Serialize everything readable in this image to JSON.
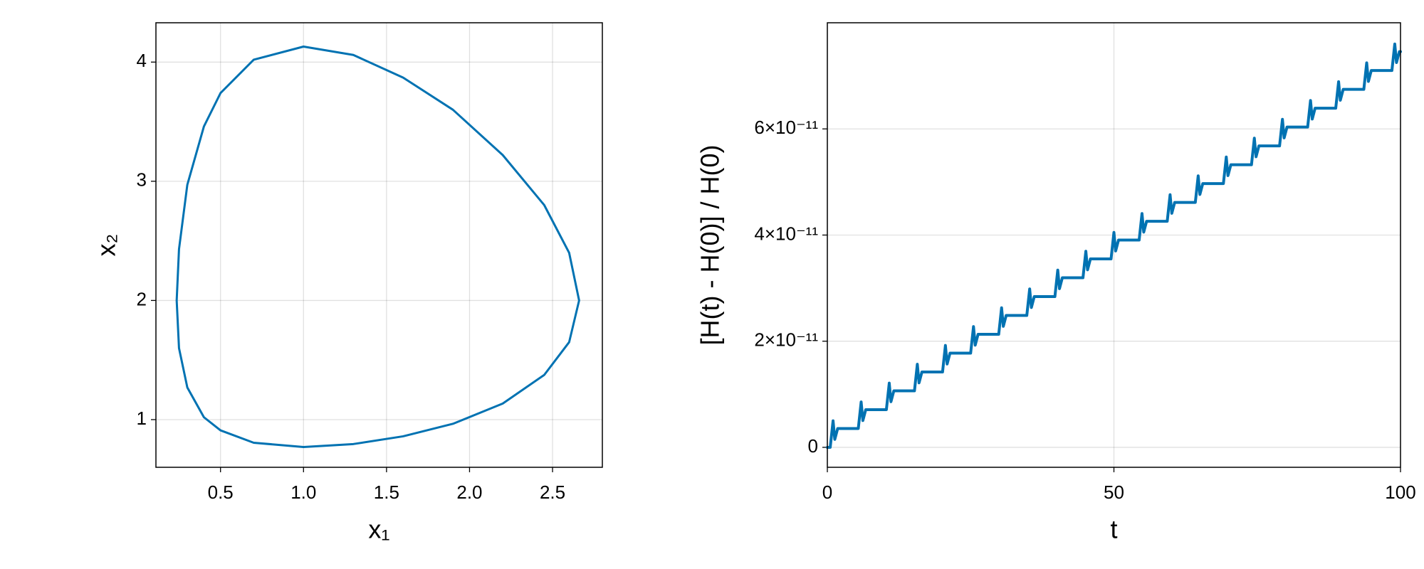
{
  "chart_data": [
    {
      "type": "line",
      "x_label": "x₁",
      "y_label": "x₂",
      "x": [
        1,
        1.3,
        1.6,
        1.9,
        2.2,
        2.45,
        2.6,
        2.66,
        2.6,
        2.45,
        2.2,
        1.9,
        1.6,
        1.3,
        1,
        0.7,
        0.5,
        0.4,
        0.3,
        0.25,
        0.236,
        0.25,
        0.3,
        0.4,
        0.5,
        0.7,
        1
      ],
      "series": [
        {
          "color": "#0072b2",
          "values": [
            0.77,
            0.795,
            0.86,
            0.965,
            1.135,
            1.375,
            1.65,
            2,
            2.4,
            2.8,
            3.22,
            3.6,
            3.87,
            4.06,
            4.13,
            4.02,
            3.74,
            3.46,
            2.97,
            2.43,
            2,
            1.6,
            1.27,
            1.02,
            0.91,
            0.806,
            0.77
          ]
        }
      ],
      "xlim": [
        0.111,
        2.8
      ],
      "ylim": [
        0.6,
        4.33
      ],
      "xticks": [
        0.5,
        {
          "value": 1,
          "label": "1.0"
        },
        1.5,
        {
          "value": 2,
          "label": "2.0"
        },
        2.5
      ],
      "yticks": [
        1,
        2,
        3,
        4
      ],
      "grid": true
    },
    {
      "type": "line",
      "x_label": "t",
      "y_label": "[H(t) - H(0)] / H(0)",
      "x": [
        0,
        0.5,
        1,
        1.3,
        1.8,
        5.4,
        5.9,
        6.2,
        6.7,
        10.3,
        10.8,
        11.1,
        11.6,
        15.2,
        15.7,
        16,
        16.5,
        20.1,
        20.6,
        20.9,
        21.4,
        25,
        25.5,
        25.8,
        26.3,
        29.9,
        30.4,
        30.7,
        31.2,
        34.8,
        35.3,
        35.6,
        36.1,
        39.7,
        40.2,
        40.5,
        41,
        44.6,
        45.1,
        45.4,
        45.9,
        49.5,
        50,
        50.3,
        50.8,
        54.4,
        54.9,
        55.2,
        55.7,
        59.3,
        59.8,
        60.1,
        60.6,
        64.2,
        64.7,
        65,
        65.5,
        69.1,
        69.6,
        69.9,
        70.4,
        74,
        74.5,
        74.8,
        75.3,
        78.9,
        79.4,
        79.7,
        80.2,
        83.8,
        84.3,
        84.6,
        85.1,
        88.7,
        89.2,
        89.5,
        90,
        93.6,
        94.1,
        94.4,
        94.9,
        98.5,
        99,
        99.3,
        99.8,
        100
      ],
      "series": [
        {
          "color": "#0072b2",
          "values": [
            0,
            0,
            5e-12,
            1.5e-12,
            3.55e-12,
            3.55e-12,
            8.55e-12,
            5.05e-12,
            7.1e-12,
            7.1e-12,
            1.21e-11,
            8.6e-12,
            1.065e-11,
            1.065e-11,
            1.565e-11,
            1.215e-11,
            1.42e-11,
            1.42e-11,
            1.92e-11,
            1.57e-11,
            1.775e-11,
            1.775e-11,
            2.275e-11,
            1.925e-11,
            2.13e-11,
            2.13e-11,
            2.63e-11,
            2.28e-11,
            2.485e-11,
            2.485e-11,
            2.985e-11,
            2.635e-11,
            2.84e-11,
            2.84e-11,
            3.34e-11,
            2.99e-11,
            3.195e-11,
            3.195e-11,
            3.695e-11,
            3.345e-11,
            3.55e-11,
            3.55e-11,
            4.05e-11,
            3.7e-11,
            3.905e-11,
            3.905e-11,
            4.405e-11,
            4.055e-11,
            4.26e-11,
            4.26e-11,
            4.76e-11,
            4.41e-11,
            4.615e-11,
            4.615e-11,
            5.115e-11,
            4.765e-11,
            4.97e-11,
            4.97e-11,
            5.47e-11,
            5.12e-11,
            5.325e-11,
            5.325e-11,
            5.825e-11,
            5.475e-11,
            5.68e-11,
            5.68e-11,
            6.18e-11,
            5.83e-11,
            6.035e-11,
            6.035e-11,
            6.535e-11,
            6.185e-11,
            6.39e-11,
            6.39e-11,
            6.89e-11,
            6.54e-11,
            6.745e-11,
            6.745e-11,
            7.245e-11,
            6.895e-11,
            7.1e-11,
            7.1e-11,
            7.6e-11,
            7.25e-11,
            7.455e-11,
            7.455e-11
          ]
        }
      ],
      "xlim": [
        0,
        100
      ],
      "ylim": [
        -3.76e-12,
        8e-11
      ],
      "xticks": [
        0,
        50,
        100
      ],
      "yticks": [
        0,
        {
          "value": 2e-11,
          "label": "2×10⁻¹¹"
        },
        {
          "value": 4e-11,
          "label": "4×10⁻¹¹"
        },
        {
          "value": 6e-11,
          "label": "6×10⁻¹¹"
        }
      ],
      "grid": true
    }
  ]
}
